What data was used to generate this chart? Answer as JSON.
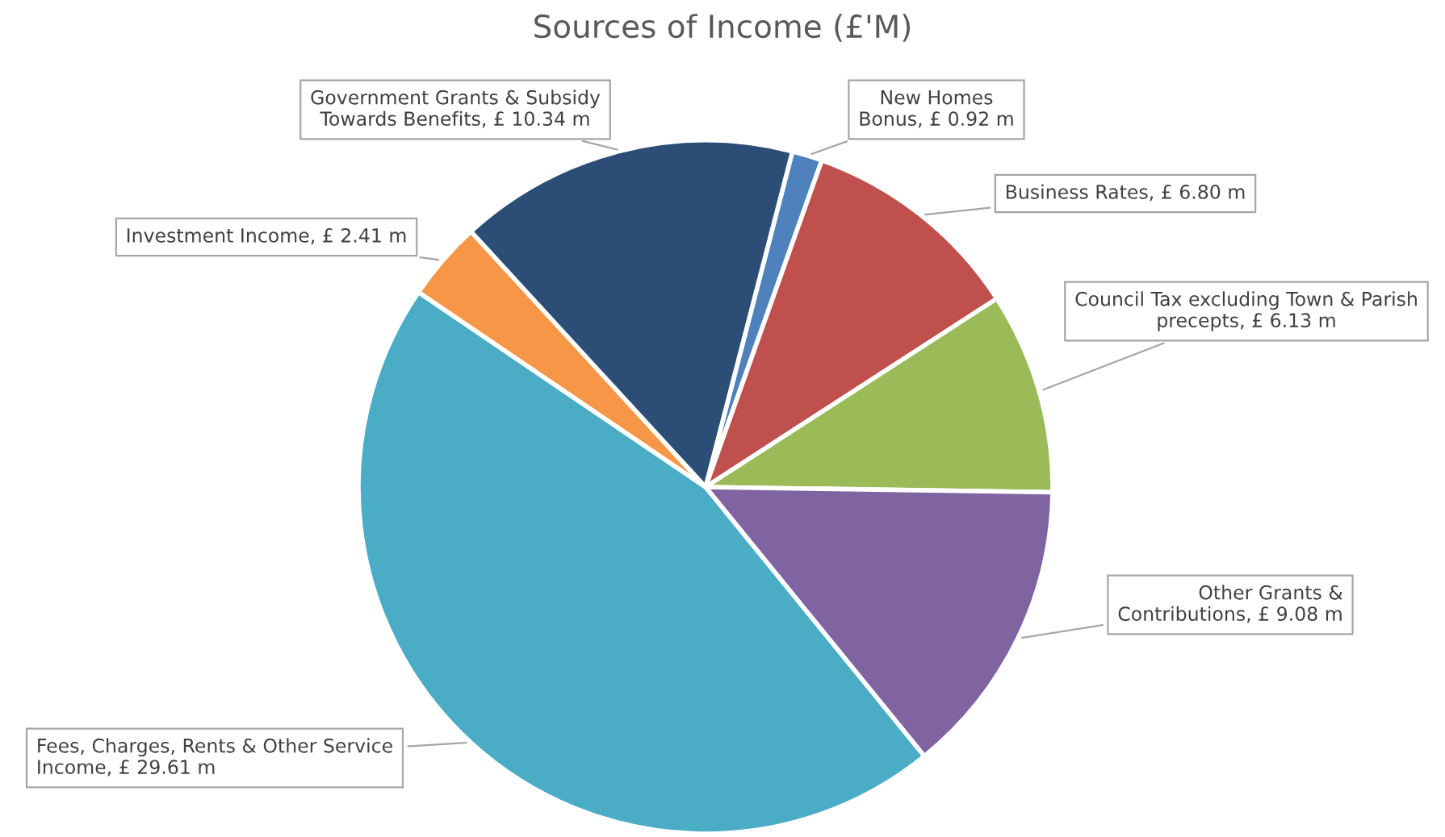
{
  "chart_data": {
    "type": "pie",
    "title": "Sources of Income (£'M)",
    "categories": [
      "New Homes Bonus",
      "Business Rates",
      "Council Tax excluding Town & Parish precepts",
      "Other Grants & Contributions",
      "Fees, Charges, Rents & Other Service Income",
      "Investment Income",
      "Government Grants & Subsidy Towards Benefits"
    ],
    "values": [
      0.92,
      6.8,
      6.13,
      9.08,
      29.61,
      2.41,
      10.34
    ],
    "value_labels": [
      "£ 0.92 m",
      "£ 6.80 m",
      "£ 6.13 m",
      "£ 9.08 m",
      "£ 29.61 m",
      "£ 2.41 m",
      "£ 10.34 m"
    ],
    "colors": [
      "#4f81bd",
      "#c0504d",
      "#9bbb59",
      "#8064a2",
      "#4bacc6",
      "#f79646",
      "#2c4d75"
    ]
  }
}
